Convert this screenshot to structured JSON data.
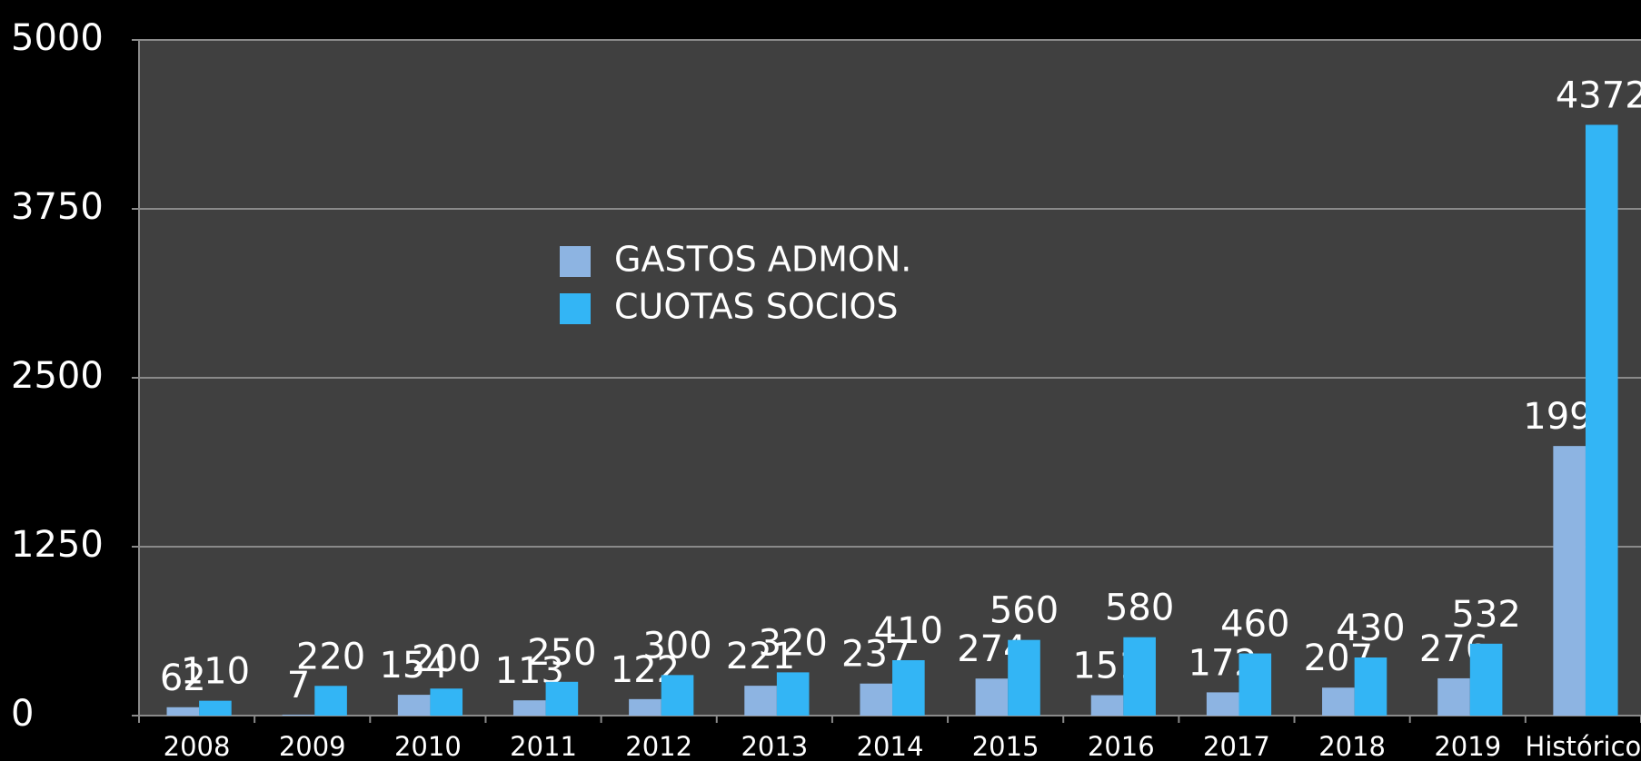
{
  "chart_data": {
    "type": "bar",
    "categories": [
      "2008",
      "2009",
      "2010",
      "2011",
      "2012",
      "2013",
      "2014",
      "2015",
      "2016",
      "2017",
      "2018",
      "2019",
      "Histórico"
    ],
    "series": [
      {
        "name": "GASTOS ADMON.",
        "color": "#8db4e2",
        "values": [
          62,
          7,
          154,
          113,
          122,
          221,
          237,
          274,
          151,
          172,
          207,
          276,
          1995
        ]
      },
      {
        "name": "CUOTAS SOCIOS",
        "color": "#33b5f5",
        "values": [
          110,
          220,
          200,
          250,
          300,
          320,
          410,
          560,
          580,
          460,
          430,
          532,
          4372
        ]
      }
    ],
    "ylim": [
      0,
      5000
    ],
    "yticks": [
      0,
      1250,
      2500,
      3750,
      5000
    ],
    "grid": true,
    "legend": "center"
  }
}
